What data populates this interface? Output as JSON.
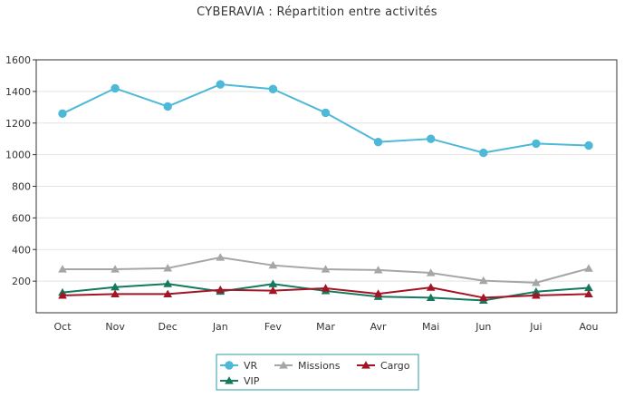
{
  "chart_data": {
    "type": "line",
    "title": "CYBERAVIA : Répartition entre activités",
    "xlabel": "",
    "ylabel": "",
    "categories": [
      "Oct",
      "Nov",
      "Dec",
      "Jan",
      "Fev",
      "Mar",
      "Avr",
      "Mai",
      "Jun",
      "Jui",
      "Aou"
    ],
    "ylim": [
      0,
      1600
    ],
    "yticks": [
      200,
      400,
      600,
      800,
      1000,
      1200,
      1400,
      1600
    ],
    "grid": true,
    "legend_position": "bottom",
    "series": [
      {
        "name": "VR",
        "marker": "circle",
        "color": "#4db8d8",
        "values": [
          1260,
          1420,
          1305,
          1445,
          1415,
          1265,
          1080,
          1100,
          1012,
          1070,
          1058
        ]
      },
      {
        "name": "Missions",
        "marker": "triangle",
        "color": "#a6a6a6",
        "values": [
          275,
          275,
          282,
          350,
          300,
          275,
          270,
          252,
          203,
          190,
          280
        ]
      },
      {
        "name": "Cargo",
        "marker": "triangle",
        "color": "#a31525",
        "values": [
          110,
          118,
          118,
          145,
          140,
          155,
          120,
          160,
          95,
          110,
          118
        ]
      },
      {
        "name": "VIP",
        "marker": "triangle",
        "color": "#137a5e",
        "values": [
          128,
          162,
          183,
          135,
          182,
          138,
          102,
          95,
          78,
          133,
          158
        ]
      }
    ]
  }
}
